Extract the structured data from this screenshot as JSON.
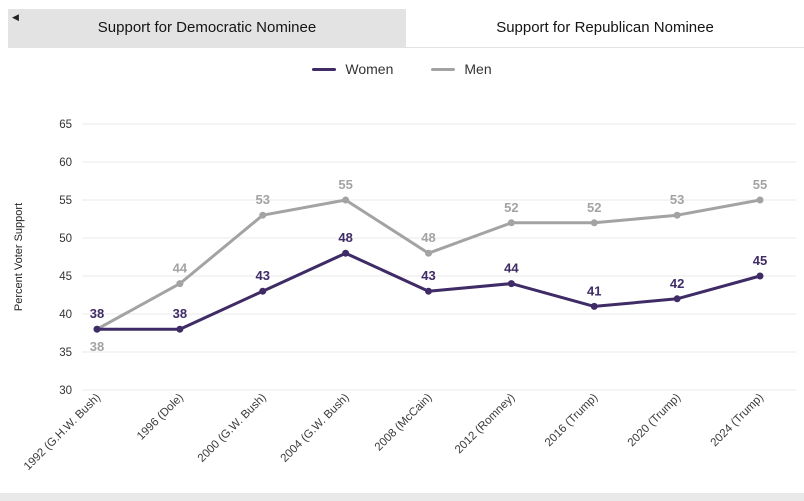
{
  "nav": {
    "back_icon": "◀"
  },
  "tabs": [
    {
      "label": "Support for Democratic Nominee",
      "active": false
    },
    {
      "label": "Support for Republican Nominee",
      "active": true
    }
  ],
  "legend": [
    {
      "label": "Women",
      "color": "#3f2b66"
    },
    {
      "label": "Men",
      "color": "#a3a3a3"
    }
  ],
  "chart_data": {
    "type": "line",
    "title": "Support for Republican Nominee",
    "xlabel": "",
    "ylabel": "Percent Voter Support",
    "categories": [
      "1992 (G.H.W. Bush)",
      "1996 (Dole)",
      "2000 (G.W. Bush)",
      "2004 (G.W. Bush)",
      "2008 (McCain)",
      "2012 (Romney)",
      "2016 (Trump)",
      "2020 (Trump)",
      "2024 (Trump)"
    ],
    "series": [
      {
        "name": "Women",
        "color": "#3f2b66",
        "values": [
          38,
          38,
          43,
          48,
          43,
          44,
          41,
          42,
          45
        ]
      },
      {
        "name": "Men",
        "color": "#a3a3a3",
        "values": [
          38,
          44,
          53,
          55,
          48,
          52,
          52,
          53,
          55
        ]
      }
    ],
    "yticks": [
      30,
      35,
      40,
      45,
      50,
      55,
      60,
      65
    ],
    "ylim": [
      28,
      67
    ],
    "grid": true,
    "legend_position": "top",
    "data_labels": true
  }
}
